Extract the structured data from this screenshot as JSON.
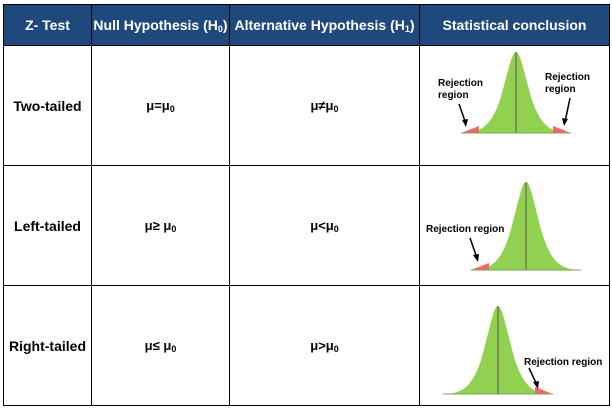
{
  "header": {
    "col1": "Z- Test",
    "col2_text": "Null Hypothesis (H",
    "col2_sub": "0",
    "col2_close": ")",
    "col3_text": "Alternative Hypothesis (H",
    "col3_sub": "1",
    "col3_close": ")",
    "col4": "Statistical conclusion"
  },
  "rows": [
    {
      "name": "Two-tailed",
      "null_main": "μ=μ",
      "null_sub": "0",
      "alt_main": "μ≠μ",
      "alt_sub": "0",
      "labels": {
        "left_line1": "Rejection",
        "left_line2": "region",
        "right_line1": "Rejection",
        "right_line2": "region"
      }
    },
    {
      "name": "Left-tailed",
      "null_main": "μ≥ μ",
      "null_sub": "0",
      "alt_main": "μ<μ",
      "alt_sub": "0",
      "labels": {
        "single": "Rejection region"
      }
    },
    {
      "name": "Right-tailed",
      "null_main": "μ≤ μ",
      "null_sub": "0",
      "alt_main": "μ>μ",
      "alt_sub": "0",
      "labels": {
        "single": "Rejection region"
      }
    }
  ],
  "colors": {
    "header_bg": "#1F497D",
    "curve_fill": "#92D050",
    "rejection_fill": "#F4646E"
  }
}
